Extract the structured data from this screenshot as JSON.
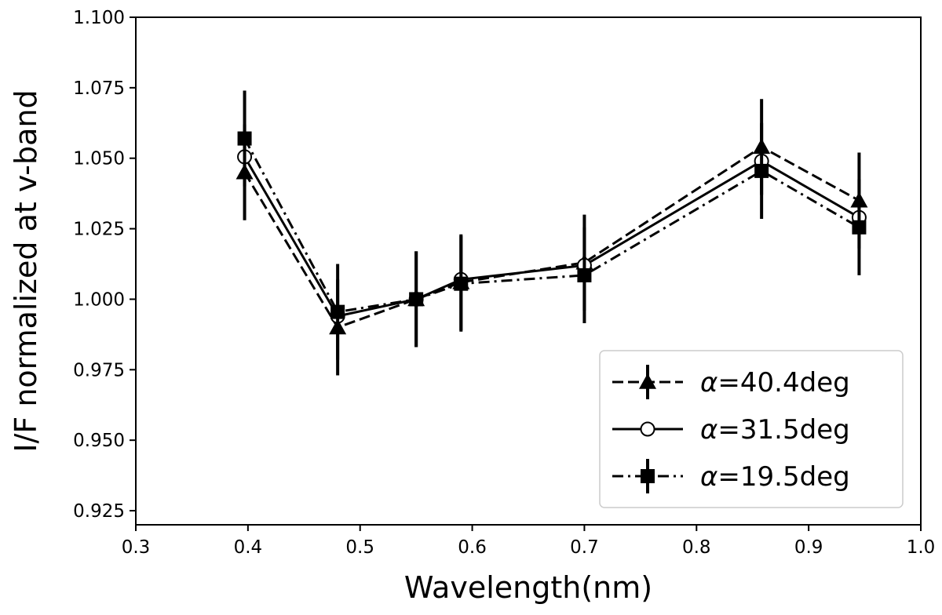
{
  "chart_data": {
    "type": "line",
    "xlabel": "Wavelength(nm)",
    "ylabel": "I/F normalized at v-band",
    "xlim": [
      0.3,
      1.0
    ],
    "ylim": [
      0.92,
      1.1
    ],
    "xticks": [
      0.3,
      0.4,
      0.5,
      0.6,
      0.7,
      0.8,
      0.9,
      1.0
    ],
    "xtick_labels": [
      "0.3",
      "0.4",
      "0.5",
      "0.6",
      "0.7",
      "0.8",
      "0.9",
      "1.0"
    ],
    "yticks": [
      0.925,
      0.95,
      0.975,
      1.0,
      1.025,
      1.05,
      1.075,
      1.1
    ],
    "ytick_labels": [
      "0.925",
      "0.950",
      "0.975",
      "1.000",
      "1.025",
      "1.050",
      "1.075",
      "1.100"
    ],
    "grid": false,
    "legend_position": "bottom-right",
    "series": [
      {
        "name": "α=40.4deg",
        "label_greek": "α",
        "label_rest": "=40.4deg",
        "line_style": "dashed",
        "marker": "triangle",
        "color": "#000000",
        "x": [
          0.397,
          0.48,
          0.55,
          0.59,
          0.7,
          0.858,
          0.945
        ],
        "y": [
          1.045,
          0.99,
          1.0,
          1.006,
          1.013,
          1.054,
          1.035
        ],
        "err": [
          0.017,
          0.017,
          0.017,
          0.017,
          0.017,
          0.017,
          0.017
        ]
      },
      {
        "name": "α=31.5deg",
        "label_greek": "α",
        "label_rest": "=31.5deg",
        "line_style": "solid",
        "marker": "circle-open",
        "color": "#000000",
        "x": [
          0.397,
          0.48,
          0.55,
          0.59,
          0.7,
          0.858,
          0.945
        ],
        "y": [
          1.0505,
          0.994,
          1.0,
          1.007,
          1.012,
          1.049,
          1.029
        ],
        "err": [
          0.0,
          0.0,
          0.0,
          0.0,
          0.0,
          0.0,
          0.0
        ]
      },
      {
        "name": "α=19.5deg",
        "label_greek": "α",
        "label_rest": "=19.5deg",
        "line_style": "dashdot",
        "marker": "square",
        "color": "#000000",
        "x": [
          0.397,
          0.48,
          0.55,
          0.59,
          0.7,
          0.858,
          0.945
        ],
        "y": [
          1.057,
          0.9955,
          1.0,
          1.0055,
          1.0085,
          1.0455,
          1.0255
        ],
        "err": [
          0.017,
          0.017,
          0.017,
          0.017,
          0.017,
          0.017,
          0.017
        ]
      }
    ]
  }
}
